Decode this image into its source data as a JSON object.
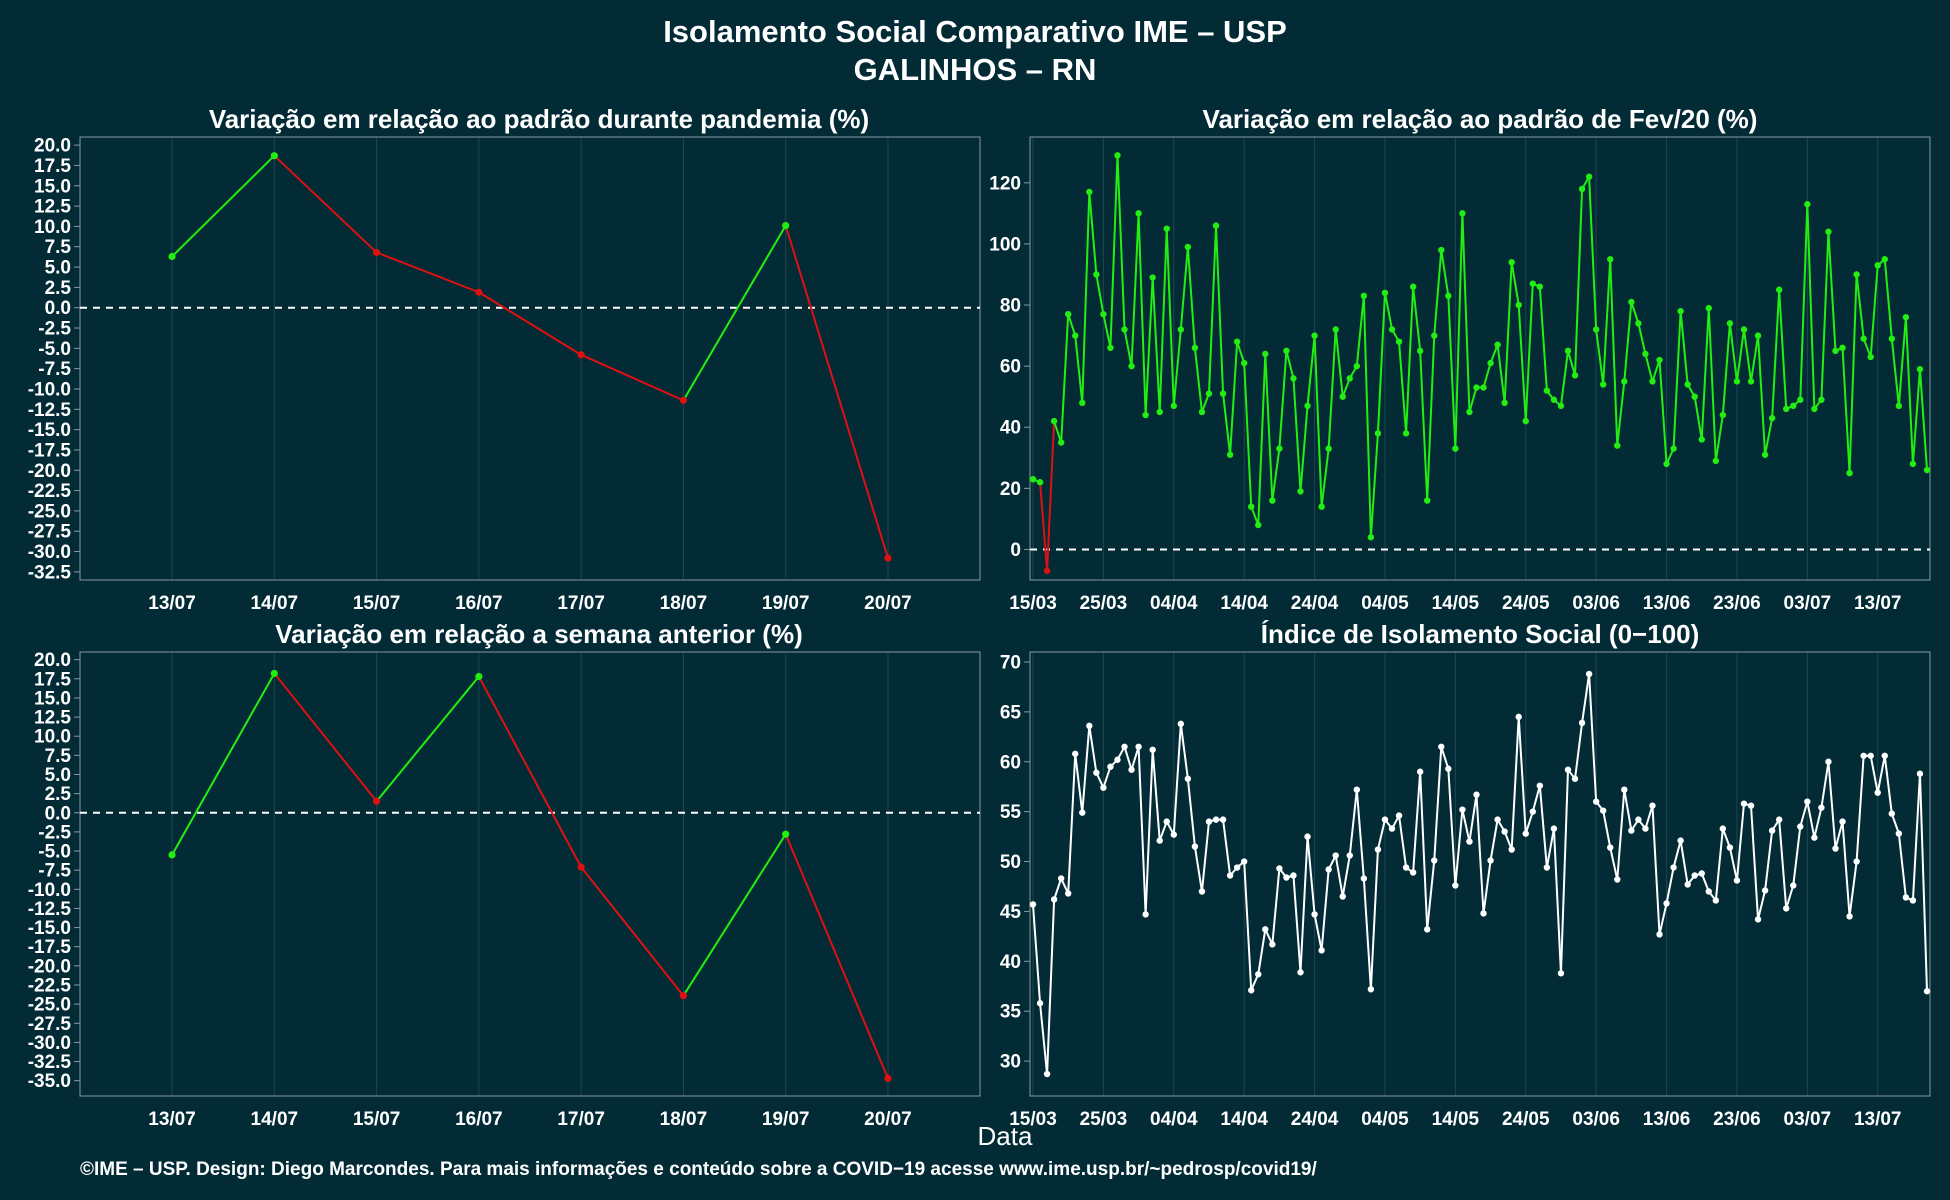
{
  "title_line1": "Isolamento Social Comparativo IME – USP",
  "title_line2": "GALINHOS – RN",
  "footer": "©IME – USP. Design: Diego Marcondes. Para mais informações e conteúdo sobre a COVID−19 acesse www.ime.usp.br/~pedrosp/covid19/",
  "shared_xlabel": "Data",
  "colors": {
    "background": "#022b36",
    "positive": "#22ee11",
    "negative": "#dd1111",
    "index": "#ffffff",
    "zero_line": "#ffffff"
  },
  "chart_data": [
    {
      "id": "p1",
      "type": "line",
      "title": "Variação em relação ao padrão durante pandemia (%)",
      "categories": [
        "13/07",
        "14/07",
        "15/07",
        "16/07",
        "17/07",
        "18/07",
        "19/07",
        "20/07"
      ],
      "values": [
        6.3,
        18.7,
        6.8,
        1.9,
        -5.8,
        -11.4,
        10.1,
        -30.8
      ],
      "ylim": [
        -33.5,
        21
      ],
      "yticks": [
        20.0,
        17.5,
        15.0,
        12.5,
        10.0,
        7.5,
        5.0,
        2.5,
        0.0,
        -2.5,
        -5.0,
        -7.5,
        -10.0,
        -12.5,
        -15.0,
        -17.5,
        -20.0,
        -22.5,
        -25.0,
        -27.5,
        -30.0,
        -32.5
      ],
      "zero_line": true,
      "color_rule": "green when rising, red when falling"
    },
    {
      "id": "p2",
      "type": "line",
      "title": "Variação em relação ao padrão de Fev/20 (%)",
      "x_start": "15/03",
      "xticks": [
        "15/03",
        "25/03",
        "04/04",
        "14/04",
        "24/04",
        "04/05",
        "14/05",
        "24/05",
        "03/06",
        "13/06",
        "23/06",
        "03/07",
        "13/07"
      ],
      "values": [
        23,
        22,
        -7,
        42,
        35,
        77,
        70,
        48,
        117,
        90,
        77,
        66,
        129,
        72,
        60,
        110,
        44,
        89,
        45,
        105,
        47,
        72,
        99,
        66,
        45,
        51,
        106,
        51,
        31,
        68,
        61,
        14,
        8,
        64,
        16,
        33,
        65,
        56,
        19,
        47,
        70,
        14,
        33,
        72,
        50,
        56,
        60,
        83,
        4,
        38,
        84,
        72,
        68,
        38,
        86,
        65,
        16,
        70,
        98,
        83,
        33,
        110,
        45,
        53,
        53,
        61,
        67,
        48,
        94,
        80,
        42,
        87,
        86,
        52,
        49,
        47,
        65,
        57,
        118,
        122,
        72,
        54,
        95,
        34,
        55,
        81,
        74,
        64,
        55,
        62,
        28,
        33,
        78,
        54,
        50,
        36,
        79,
        29,
        44,
        74,
        55,
        72,
        55,
        70,
        31,
        43,
        85,
        46,
        47,
        49,
        113,
        46,
        49,
        104,
        65,
        66,
        25,
        90,
        69,
        63,
        93,
        95,
        69,
        47,
        76,
        28,
        59,
        26
      ],
      "ylim": [
        -10,
        135
      ],
      "yticks": [
        0,
        20,
        40,
        60,
        80,
        100,
        120
      ],
      "zero_line": true,
      "color_rule": "green when value >= 0, red when below 0"
    },
    {
      "id": "p3",
      "type": "line",
      "title": "Variação em relação a semana anterior (%)",
      "categories": [
        "13/07",
        "14/07",
        "15/07",
        "16/07",
        "17/07",
        "18/07",
        "19/07",
        "20/07"
      ],
      "values": [
        -5.5,
        18.2,
        1.5,
        17.8,
        -7.1,
        -23.9,
        -2.8,
        -34.7
      ],
      "ylim": [
        -37,
        21
      ],
      "yticks": [
        20.0,
        17.5,
        15.0,
        12.5,
        10.0,
        7.5,
        5.0,
        2.5,
        0.0,
        -2.5,
        -5.0,
        -7.5,
        -10.0,
        -12.5,
        -15.0,
        -17.5,
        -20.0,
        -22.5,
        -25.0,
        -27.5,
        -30.0,
        -32.5,
        -35.0
      ],
      "zero_line": true,
      "color_rule": "green when rising, red when falling"
    },
    {
      "id": "p4",
      "type": "line",
      "title": "Índice de Isolamento Social (0−100)",
      "x_start": "15/03",
      "xticks": [
        "15/03",
        "25/03",
        "04/04",
        "14/04",
        "24/04",
        "04/05",
        "14/05",
        "24/05",
        "03/06",
        "13/06",
        "23/06",
        "03/07",
        "13/07"
      ],
      "values": [
        45.7,
        35.8,
        28.7,
        46.2,
        48.3,
        46.8,
        60.8,
        54.9,
        63.6,
        58.9,
        57.4,
        59.5,
        60.2,
        61.5,
        59.2,
        61.5,
        44.7,
        61.2,
        52.1,
        54.0,
        52.7,
        63.8,
        58.3,
        51.5,
        47.0,
        54.0,
        54.2,
        54.2,
        48.6,
        49.4,
        50.0,
        37.1,
        38.7,
        43.2,
        41.7,
        49.3,
        48.4,
        48.6,
        38.9,
        52.5,
        44.7,
        41.1,
        49.2,
        50.6,
        46.5,
        50.6,
        57.2,
        48.3,
        37.2,
        51.2,
        54.2,
        53.3,
        54.6,
        49.4,
        48.9,
        59.0,
        43.2,
        50.1,
        61.5,
        59.3,
        47.6,
        55.2,
        52.0,
        56.7,
        44.8,
        50.1,
        54.2,
        53.0,
        51.2,
        64.5,
        52.8,
        55.0,
        57.6,
        49.4,
        53.3,
        38.8,
        59.2,
        58.3,
        63.9,
        68.8,
        56.0,
        55.1,
        51.4,
        48.2,
        57.2,
        53.1,
        54.2,
        53.3,
        55.6,
        42.7,
        45.8,
        49.4,
        52.1,
        47.7,
        48.6,
        48.8,
        47.0,
        46.1,
        53.3,
        51.4,
        48.1,
        55.8,
        55.6,
        44.2,
        47.1,
        53.1,
        54.2,
        45.3,
        47.6,
        53.5,
        56.0,
        52.4,
        55.4,
        60.0,
        51.3,
        54.0,
        44.5,
        50.0,
        60.6,
        60.6,
        56.9,
        60.6,
        54.8,
        52.8,
        46.4,
        46.1,
        58.8,
        37.0
      ],
      "ylim": [
        26.5,
        71
      ],
      "yticks": [
        30,
        35,
        40,
        45,
        50,
        55,
        60,
        65,
        70
      ],
      "zero_line": false,
      "color_rule": "single white series"
    }
  ]
}
